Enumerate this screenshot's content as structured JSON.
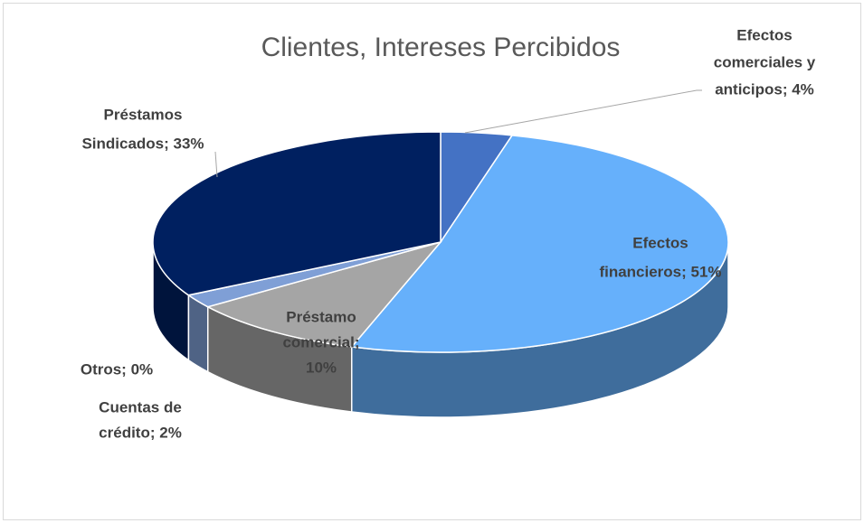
{
  "chart_data": {
    "type": "pie",
    "title": "Clientes, Intereses Percibidos",
    "values": [
      4,
      51,
      10,
      2,
      0,
      33
    ],
    "data_labels": [
      [
        "Efectos",
        "comerciales y",
        "anticipos; 4%"
      ],
      [
        "Efectos",
        "financieros; 51%"
      ],
      [
        "Préstamo",
        "comercial;",
        "10%"
      ],
      [
        "Cuentas de",
        "crédito; 2%"
      ],
      [
        "Otros; 0%"
      ],
      [
        "Préstamos",
        "Sindicados; 33%"
      ]
    ],
    "colors": [
      "#4472c4",
      "#66b0fb",
      "#a5a5a5",
      "#7f9fd6",
      "#c9d9f2",
      "#002060"
    ]
  }
}
